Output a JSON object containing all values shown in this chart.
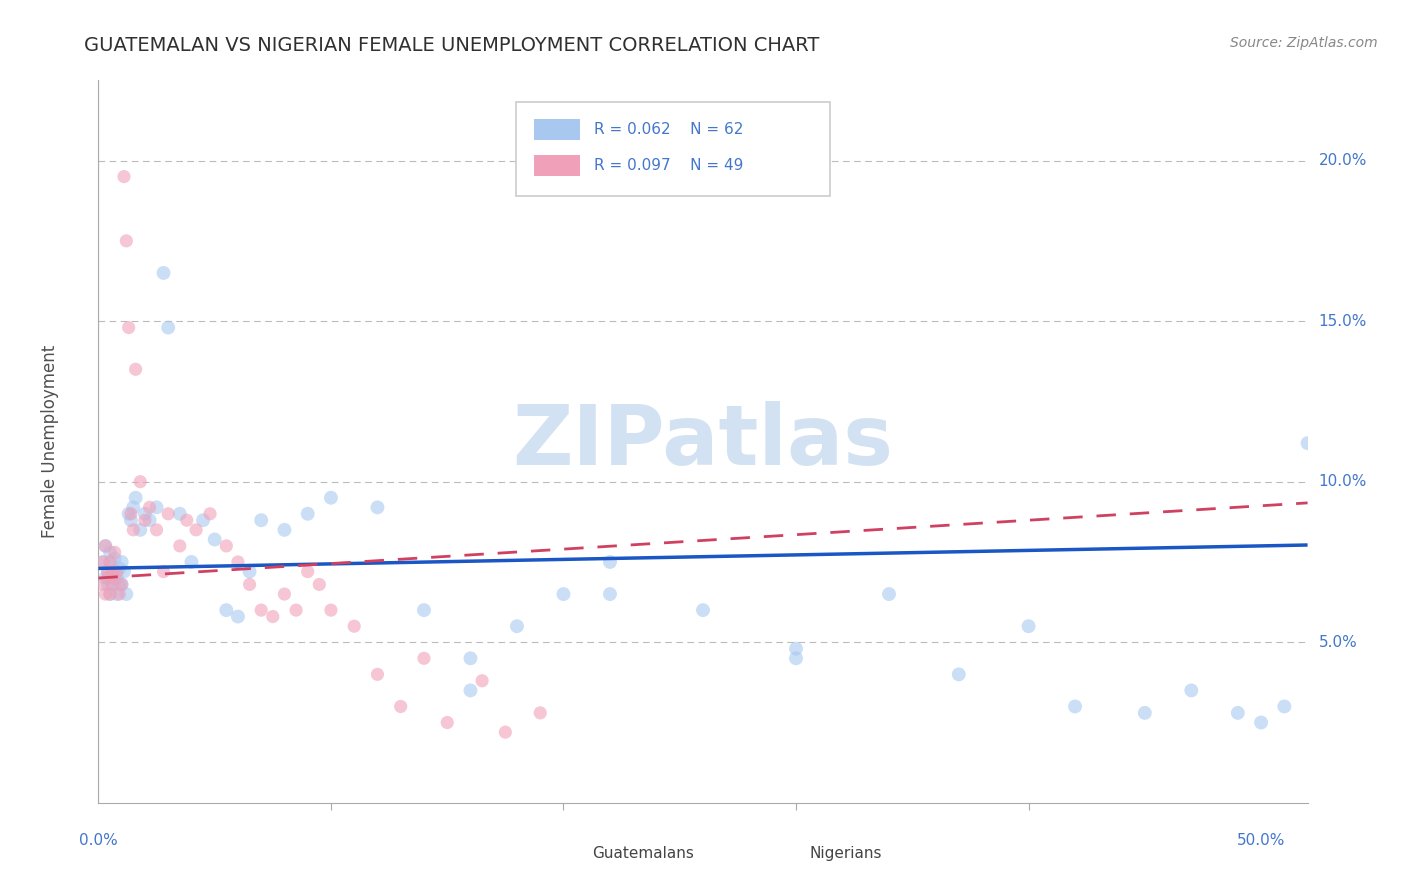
{
  "title": "GUATEMALAN VS NIGERIAN FEMALE UNEMPLOYMENT CORRELATION CHART",
  "source": "Source: ZipAtlas.com",
  "ylabel": "Female Unemployment",
  "ytick_labels": [
    "20.0%",
    "15.0%",
    "10.0%",
    "5.0%"
  ],
  "ytick_values": [
    0.2,
    0.15,
    0.1,
    0.05
  ],
  "xlim": [
    0.0,
    0.52
  ],
  "ylim": [
    0.0,
    0.225
  ],
  "legend_r_blue": "R = 0.062",
  "legend_n_blue": "N = 62",
  "legend_r_pink": "R = 0.097",
  "legend_n_pink": "N = 49",
  "blue_color": "#a8c8f0",
  "pink_color": "#f0a0b8",
  "trendline_blue_color": "#1a56c4",
  "trendline_pink_color": "#d04060",
  "background_color": "#ffffff",
  "grid_color": "#bbbbbb",
  "title_color": "#303030",
  "axis_label_color": "#4477cc",
  "watermark": "ZIPatlas",
  "guatemalans_x": [
    0.002,
    0.003,
    0.003,
    0.004,
    0.004,
    0.005,
    0.005,
    0.005,
    0.006,
    0.006,
    0.007,
    0.007,
    0.008,
    0.008,
    0.009,
    0.009,
    0.01,
    0.01,
    0.011,
    0.012,
    0.013,
    0.014,
    0.015,
    0.016,
    0.018,
    0.02,
    0.022,
    0.025,
    0.028,
    0.03,
    0.035,
    0.04,
    0.045,
    0.05,
    0.055,
    0.06,
    0.065,
    0.07,
    0.08,
    0.09,
    0.1,
    0.12,
    0.14,
    0.16,
    0.18,
    0.2,
    0.22,
    0.26,
    0.3,
    0.34,
    0.37,
    0.4,
    0.42,
    0.45,
    0.47,
    0.49,
    0.5,
    0.51,
    0.52,
    0.3,
    0.16,
    0.22
  ],
  "guatemalans_y": [
    0.075,
    0.08,
    0.07,
    0.068,
    0.072,
    0.065,
    0.075,
    0.078,
    0.07,
    0.068,
    0.072,
    0.076,
    0.065,
    0.07,
    0.068,
    0.073,
    0.075,
    0.068,
    0.072,
    0.065,
    0.09,
    0.088,
    0.092,
    0.095,
    0.085,
    0.09,
    0.088,
    0.092,
    0.165,
    0.148,
    0.09,
    0.075,
    0.088,
    0.082,
    0.06,
    0.058,
    0.072,
    0.088,
    0.085,
    0.09,
    0.095,
    0.092,
    0.06,
    0.045,
    0.055,
    0.065,
    0.075,
    0.06,
    0.048,
    0.065,
    0.04,
    0.055,
    0.03,
    0.028,
    0.035,
    0.028,
    0.025,
    0.03,
    0.112,
    0.045,
    0.035,
    0.065
  ],
  "nigerians_x": [
    0.002,
    0.002,
    0.003,
    0.003,
    0.004,
    0.004,
    0.005,
    0.005,
    0.006,
    0.006,
    0.007,
    0.007,
    0.008,
    0.009,
    0.01,
    0.011,
    0.012,
    0.013,
    0.014,
    0.015,
    0.016,
    0.018,
    0.02,
    0.022,
    0.025,
    0.028,
    0.03,
    0.035,
    0.038,
    0.042,
    0.048,
    0.055,
    0.06,
    0.065,
    0.07,
    0.075,
    0.08,
    0.085,
    0.09,
    0.095,
    0.1,
    0.11,
    0.12,
    0.13,
    0.14,
    0.15,
    0.165,
    0.175,
    0.19
  ],
  "nigerians_y": [
    0.075,
    0.068,
    0.08,
    0.065,
    0.072,
    0.07,
    0.065,
    0.075,
    0.068,
    0.072,
    0.07,
    0.078,
    0.072,
    0.065,
    0.068,
    0.195,
    0.175,
    0.148,
    0.09,
    0.085,
    0.135,
    0.1,
    0.088,
    0.092,
    0.085,
    0.072,
    0.09,
    0.08,
    0.088,
    0.085,
    0.09,
    0.08,
    0.075,
    0.068,
    0.06,
    0.058,
    0.065,
    0.06,
    0.072,
    0.068,
    0.06,
    0.055,
    0.04,
    0.03,
    0.045,
    0.025,
    0.038,
    0.022,
    0.028
  ],
  "dot_size_blue": 100,
  "dot_size_pink": 90,
  "alpha_blue": 0.6,
  "alpha_pink": 0.6,
  "trendline_blue_intercept": 0.073,
  "trendline_blue_slope": 0.014,
  "trendline_pink_intercept": 0.07,
  "trendline_pink_slope": 0.045
}
